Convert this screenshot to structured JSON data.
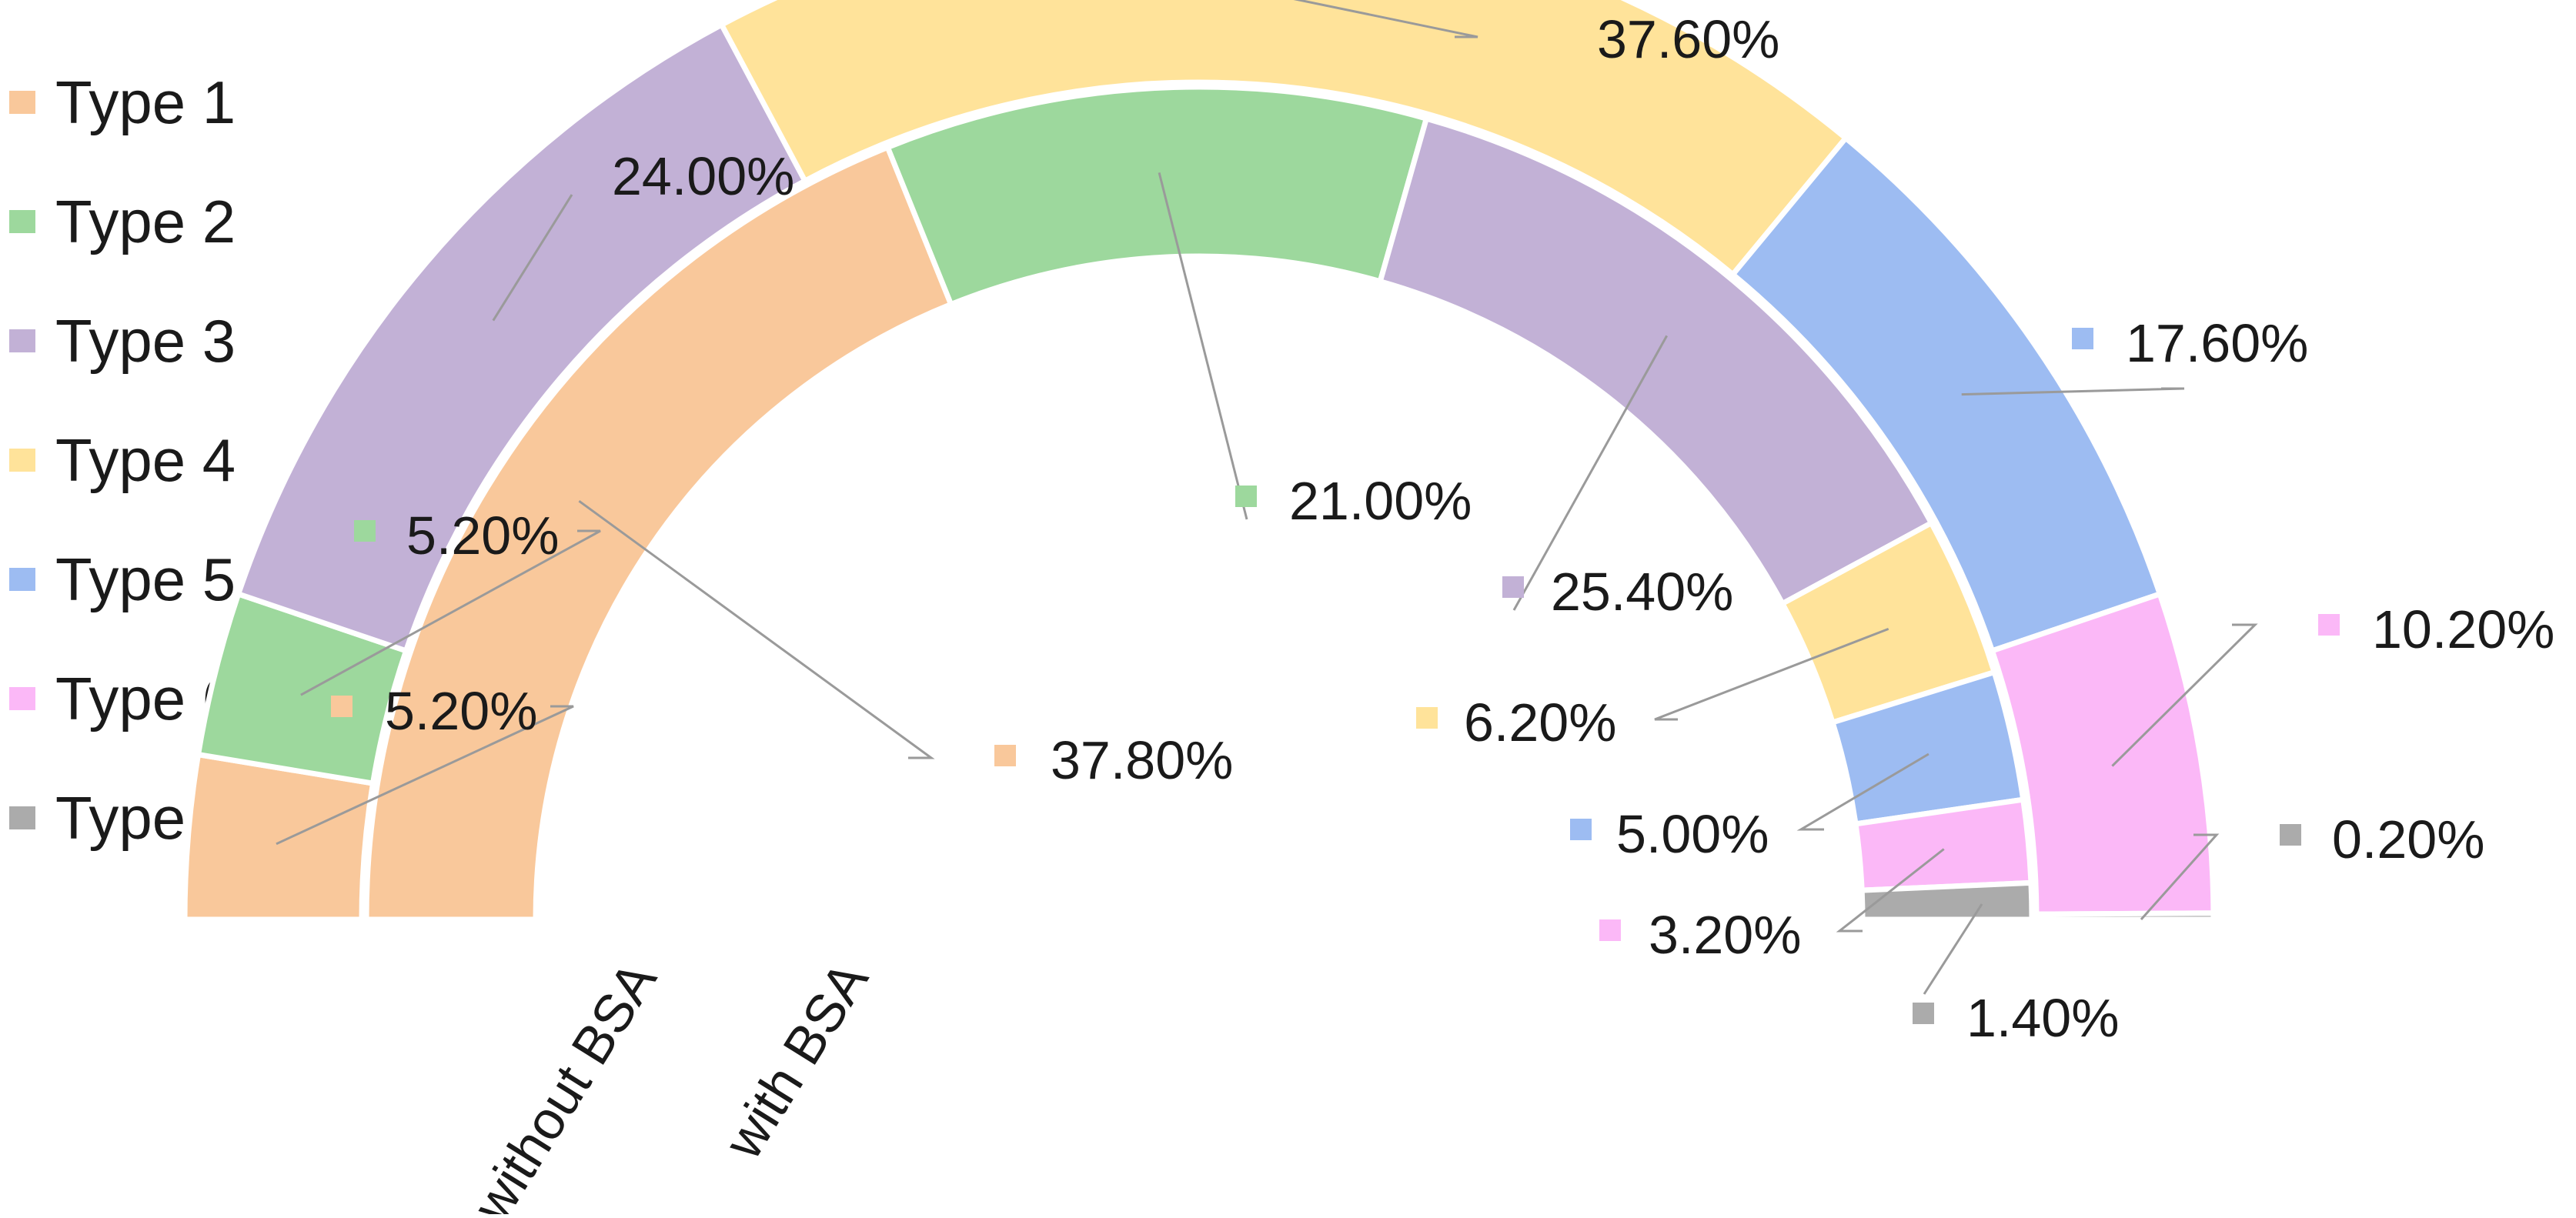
{
  "chart_data": {
    "type": "pie",
    "subtype": "half-donut (nested rings)",
    "title": "",
    "legend": {
      "position": "top-left",
      "entries": [
        "Type 1",
        "Type 2",
        "Type 3",
        "Type 4",
        "Type 5",
        "Type 6",
        "Type 7"
      ]
    },
    "colors": {
      "Type 1": "#F9C89B",
      "Type 2": "#9DD89D",
      "Type 3": "#C2B1D6",
      "Type 4": "#FFE39A",
      "Type 5": "#9DBCF2",
      "Type 6": "#FBB8F7",
      "Type 7": "#ABABAB"
    },
    "categories": [
      "Type 1",
      "Type 2",
      "Type 3",
      "Type 4",
      "Type 5",
      "Type 6",
      "Type 7"
    ],
    "series": [
      {
        "name": "without BSA",
        "values": [
          5.2,
          5.2,
          24.0,
          37.6,
          17.6,
          10.2,
          0.2
        ],
        "labels": [
          "5.20%",
          "5.20%",
          "24.00%",
          "37.60%",
          "17.60%",
          "10.20%",
          "0.20%"
        ]
      },
      {
        "name": "with BSA",
        "values": [
          37.8,
          21.0,
          25.4,
          6.2,
          5.0,
          3.2,
          1.4
        ],
        "labels": [
          "37.80%",
          "21.00%",
          "25.40%",
          "6.20%",
          "5.00%",
          "3.20%",
          "1.40%"
        ]
      }
    ],
    "unit": "%",
    "grid": false
  }
}
